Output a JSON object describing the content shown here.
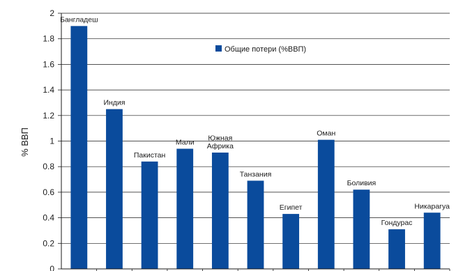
{
  "chart_data": {
    "type": "bar",
    "title": "",
    "xlabel": "",
    "ylabel": "% ВВП",
    "ylim": [
      0,
      2
    ],
    "yticks": [
      "0",
      "0.2",
      "0.4",
      "0.6",
      "0.8",
      "1",
      "1.2",
      "1.4",
      "1.6",
      "1.8",
      "2"
    ],
    "grid": "horizontal",
    "legend_position": "upper-center",
    "categories": [
      "Бангладеш",
      "Индия",
      "Пакистан",
      "Мали",
      "Южная Африка",
      "Танзания",
      "Египет",
      "Оман",
      "Боливия",
      "Гондурас",
      "Никарагуа"
    ],
    "category_label_lines": [
      [
        "Бангладеш"
      ],
      [
        "Индия"
      ],
      [
        "Пакистан"
      ],
      [
        "Мали"
      ],
      [
        "Южная",
        "Африка"
      ],
      [
        "Танзания"
      ],
      [
        "Египет"
      ],
      [
        "Оман"
      ],
      [
        "Боливия"
      ],
      [
        "Гондурас"
      ],
      [
        "Никарагуа"
      ]
    ],
    "series": [
      {
        "name": "Общие потери (%ВВП)",
        "color": "#0a4b9c",
        "values": [
          1.9,
          1.25,
          0.84,
          0.94,
          0.91,
          0.69,
          0.43,
          1.01,
          0.62,
          0.31,
          0.44
        ]
      }
    ]
  }
}
